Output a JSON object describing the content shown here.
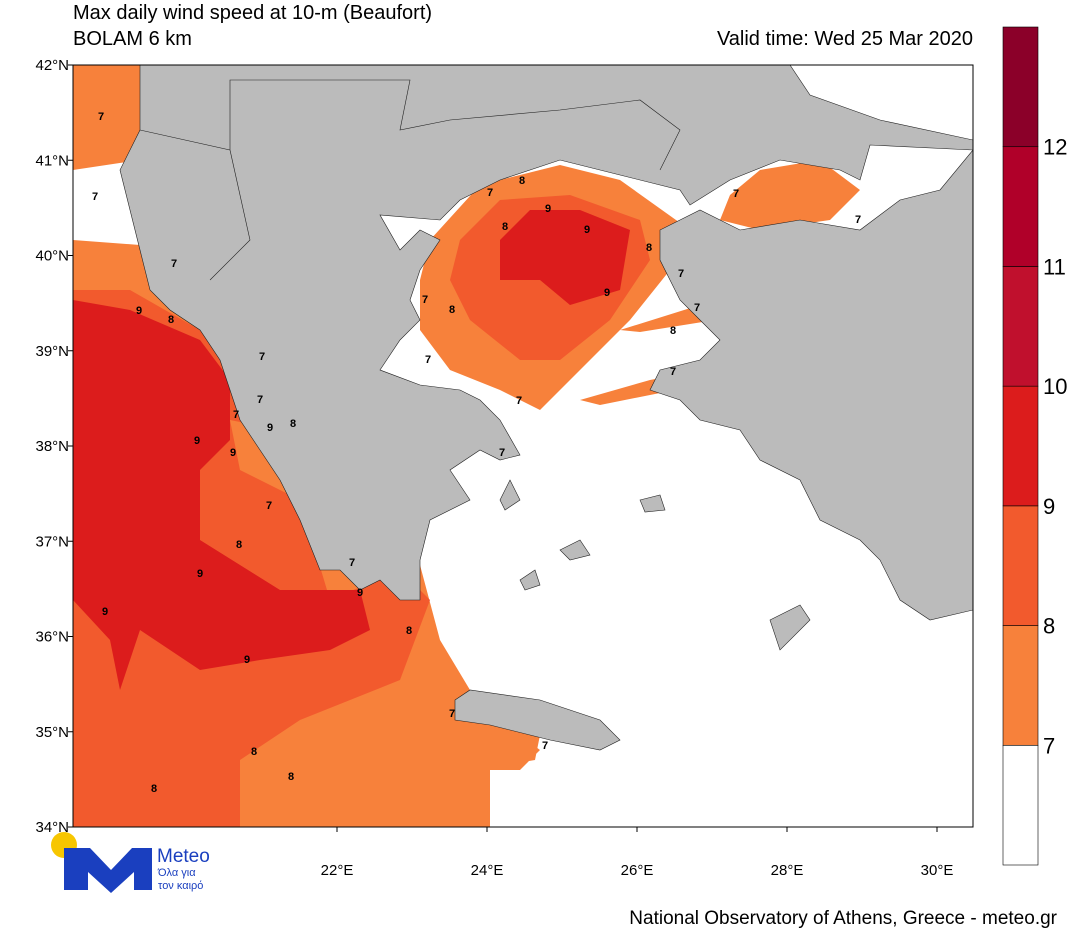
{
  "header": {
    "title": "Max daily wind speed at 10-m (Beaufort)",
    "subtitle": "BOLAM 6 km",
    "valid_time": "Valid time: Wed 25 Mar 2020"
  },
  "map": {
    "xlim": [
      18.48,
      30.48
    ],
    "ylim": [
      34,
      42
    ],
    "lat_ticks": [
      {
        "value": 42,
        "label": "42°N"
      },
      {
        "value": 41,
        "label": "41°N"
      },
      {
        "value": 40,
        "label": "40°N"
      },
      {
        "value": 39,
        "label": "39°N"
      },
      {
        "value": 38,
        "label": "38°N"
      },
      {
        "value": 37,
        "label": "37°N"
      },
      {
        "value": 36,
        "label": "36°N"
      },
      {
        "value": 35,
        "label": "35°N"
      },
      {
        "value": 34,
        "label": "34°N"
      }
    ],
    "lon_ticks": [
      {
        "value": 22,
        "label": "22°E"
      },
      {
        "value": 24,
        "label": "24°E"
      },
      {
        "value": 26,
        "label": "26°E"
      },
      {
        "value": 28,
        "label": "28°E"
      },
      {
        "value": 30,
        "label": "30°E"
      }
    ],
    "contour_labels": [
      7,
      7,
      7,
      9,
      8,
      7,
      7,
      7,
      9,
      9,
      9,
      8,
      7,
      8,
      9,
      9,
      9,
      7,
      9,
      8,
      8,
      8,
      8,
      7,
      7,
      7,
      7,
      7,
      7,
      8,
      7,
      8,
      9,
      8,
      9,
      9,
      8,
      7,
      7,
      8,
      7,
      7,
      7
    ]
  },
  "colorbar": {
    "levels": [
      7,
      8,
      9,
      10,
      11,
      12
    ],
    "colors": [
      "#ffffff",
      "#f7813b",
      "#f25a2d",
      "#dc1c1c",
      "#c0102d",
      "#b00029",
      "#8b0029"
    ]
  },
  "logo": {
    "name": "Meteo",
    "tagline_1": "Όλα για",
    "tagline_2": "τον καιρό"
  },
  "footer": "National Observatory of Athens, Greece - meteo.gr"
}
